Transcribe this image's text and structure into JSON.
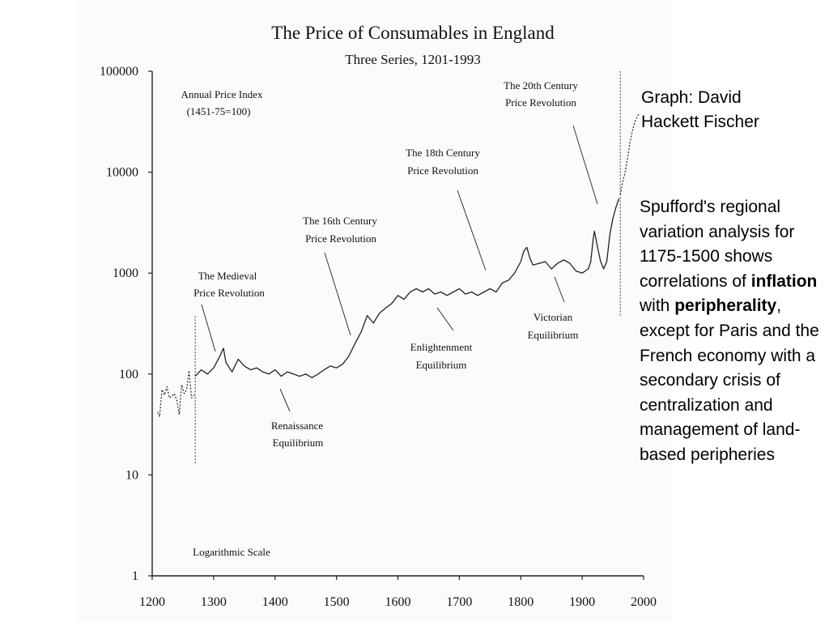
{
  "credit": "Graph: David Hackett Fischer",
  "caption": {
    "part1": "Spufford's regional variation analysis for 1175-1500 shows correlations of ",
    "bold1": "inflation",
    "part2": " with ",
    "bold2": "peripherality",
    "part3": ", except for Paris and the French economy with a secondary crisis of centralization and management of land-based peripheries"
  },
  "chart_data": {
    "type": "line",
    "title": "The Price of Consumables in England",
    "subtitle": "Three Series, 1201-1993",
    "index_label_line1": "Annual Price Index",
    "index_label_line2": "(1451-75=100)",
    "scale_note": "Logarithmic  Scale",
    "log_scale": true,
    "xlim": [
      1200,
      2000
    ],
    "ylim": [
      1,
      100000
    ],
    "x_ticks": [
      "1200",
      "1300",
      "1400",
      "1500",
      "1600",
      "1700",
      "1800",
      "1900",
      "2000"
    ],
    "y_ticks": [
      "1",
      "10",
      "100",
      "1000",
      "10000",
      "100000"
    ],
    "series": [
      {
        "x": [
          1209,
          1212,
          1216,
          1220,
          1224,
          1228,
          1232,
          1236,
          1240,
          1244,
          1248,
          1252,
          1256,
          1260,
          1264,
          1268
        ],
        "y": [
          42,
          38,
          70,
          62,
          75,
          58,
          60,
          64,
          55,
          40,
          78,
          64,
          70,
          108,
          58,
          62
        ]
      },
      {
        "x": [
          1270,
          1280,
          1290,
          1300,
          1310,
          1316,
          1320,
          1330,
          1340,
          1350,
          1360,
          1370,
          1380,
          1390,
          1400,
          1410,
          1420,
          1430,
          1440,
          1450,
          1460,
          1470,
          1480,
          1490,
          1500,
          1510,
          1520,
          1530,
          1540,
          1550,
          1560,
          1570,
          1580,
          1590,
          1600,
          1610,
          1620,
          1630,
          1640,
          1650,
          1660,
          1670,
          1680,
          1690,
          1700,
          1710,
          1720,
          1730,
          1740,
          1750,
          1760,
          1770,
          1780,
          1790,
          1800,
          1805,
          1810,
          1815,
          1820,
          1830,
          1840,
          1850,
          1860,
          1870,
          1880,
          1890,
          1900,
          1910,
          1914,
          1918,
          1920,
          1925,
          1930,
          1935,
          1940,
          1945,
          1950,
          1955,
          1960
        ],
        "y": [
          95,
          110,
          100,
          115,
          150,
          180,
          130,
          105,
          140,
          120,
          110,
          115,
          105,
          100,
          110,
          95,
          105,
          100,
          95,
          100,
          92,
          100,
          110,
          120,
          115,
          125,
          150,
          200,
          260,
          380,
          320,
          400,
          450,
          500,
          600,
          550,
          650,
          700,
          650,
          700,
          620,
          650,
          600,
          650,
          700,
          620,
          650,
          600,
          650,
          700,
          650,
          800,
          850,
          1000,
          1300,
          1650,
          1800,
          1400,
          1200,
          1250,
          1300,
          1100,
          1250,
          1350,
          1250,
          1050,
          1000,
          1100,
          1300,
          2200,
          2600,
          1800,
          1300,
          1100,
          1300,
          2400,
          3500,
          4500,
          5500
        ]
      },
      {
        "x": [
          1962,
          1966,
          1970,
          1974,
          1978,
          1982,
          1986,
          1990,
          1993
        ],
        "y": [
          6000,
          8000,
          10000,
          14000,
          20000,
          26000,
          32000,
          36000,
          38000
        ]
      }
    ],
    "vertical_markers": [
      1270,
      1962
    ],
    "annotations": [
      {
        "line1": "The Medieval",
        "line2": "Price Revolution"
      },
      {
        "line1": "The 16th Century",
        "line2": "Price Revolution"
      },
      {
        "line1": "The 18th Century",
        "line2": "Price Revolution"
      },
      {
        "line1": "The 20th Century",
        "line2": "Price Revolution"
      },
      {
        "line1": "Renaissance",
        "line2": "Equilibrium"
      },
      {
        "line1": "Enlightenment",
        "line2": "Equilibrium"
      },
      {
        "line1": "Victorian",
        "line2": "Equilibrium"
      }
    ]
  }
}
